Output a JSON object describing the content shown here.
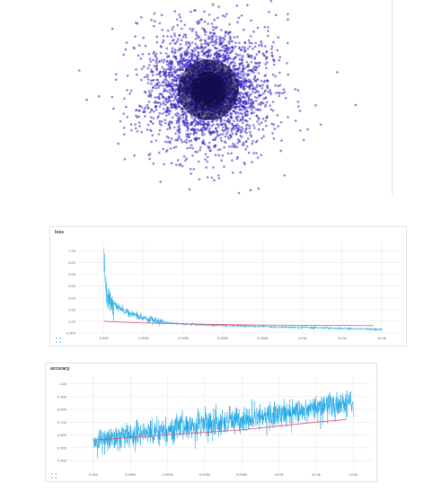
{
  "projector": {
    "dot_color": "#2b1fbf",
    "core_color": "#0b0733",
    "highlight_color": "#7fd06a"
  },
  "loss_panel": {
    "title": "loss",
    "expand_icon": "expand-icon"
  },
  "accuracy_panel": {
    "title": "accuracy",
    "expand_icon": "expand-icon"
  },
  "colors": {
    "raw_series": "#1da7e6",
    "smoothed_series": "#e0506b",
    "grid": "#e8e8e8",
    "tick_text": "#666666"
  },
  "chart_data": [
    {
      "type": "line",
      "title": "loss",
      "xlabel": "",
      "ylabel": "",
      "xlim": [
        -1300,
        15000
      ],
      "ylim": [
        0,
        7.8
      ],
      "x_ticks": [
        0,
        2000,
        4000,
        6000,
        8000,
        10000,
        12000,
        14000
      ],
      "x_tick_labels": [
        "0.000",
        "2.000k",
        "4.000k",
        "6.000k",
        "8.000k",
        "10.0k",
        "12.0k",
        "14.0k"
      ],
      "y_ticks": [
        0,
        1,
        2,
        3,
        4,
        5,
        6,
        7
      ],
      "y_tick_labels": [
        "0.000",
        "1.00",
        "2.00",
        "3.00",
        "4.00",
        "5.00",
        "6.00",
        "7.00"
      ],
      "grid": true,
      "series": [
        {
          "color": "#1da7e6",
          "x": [
            0,
            50,
            100,
            200,
            400,
            700,
            1000,
            1500,
            2000,
            2500,
            3000,
            3500,
            4000,
            5000,
            6000,
            7000,
            8000,
            9000,
            10000,
            11000,
            12000,
            13000,
            14000
          ],
          "values": [
            7.0,
            5.2,
            3.8,
            3.1,
            2.6,
            2.2,
            1.9,
            1.55,
            1.3,
            1.1,
            0.95,
            0.85,
            0.78,
            0.7,
            0.64,
            0.6,
            0.55,
            0.5,
            0.47,
            0.44,
            0.4,
            0.36,
            0.3
          ]
        },
        {
          "color": "#e0506b",
          "x": [
            0,
            1000,
            2000,
            4000,
            6000,
            8000,
            10000,
            12000,
            13600
          ],
          "values": [
            1.0,
            0.92,
            0.86,
            0.78,
            0.72,
            0.68,
            0.66,
            0.64,
            0.62
          ]
        }
      ]
    },
    {
      "type": "line",
      "title": "accuracy",
      "xlabel": "",
      "ylabel": "",
      "xlim": [
        -1300,
        15000
      ],
      "ylim": [
        0.33,
        1.06
      ],
      "x_ticks": [
        0,
        2000,
        4000,
        6000,
        8000,
        10000,
        12000,
        14000
      ],
      "x_tick_labels": [
        "0.000",
        "2.000k",
        "4.000k",
        "6.000k",
        "8.000k",
        "10.0k",
        "12.0k",
        "14.0k"
      ],
      "y_ticks": [
        0.4,
        0.5,
        0.6,
        0.7,
        0.8,
        0.9,
        1.0
      ],
      "y_tick_labels": [
        "0.400",
        "0.500",
        "0.600",
        "0.700",
        "0.800",
        "0.900",
        "1.00"
      ],
      "grid": true,
      "series": [
        {
          "color": "#1da7e6",
          "x": [
            0,
            1000,
            2000,
            3000,
            4000,
            5000,
            6000,
            7000,
            8000,
            9000,
            10000,
            11000,
            12000,
            13000,
            14000
          ],
          "values": [
            0.55,
            0.58,
            0.6,
            0.62,
            0.64,
            0.66,
            0.68,
            0.7,
            0.72,
            0.74,
            0.76,
            0.78,
            0.81,
            0.84,
            0.86
          ]
        },
        {
          "color": "#e0506b",
          "x": [
            0,
            2000,
            4000,
            6000,
            8000,
            10000,
            12000,
            13600
          ],
          "values": [
            0.56,
            0.58,
            0.6,
            0.62,
            0.64,
            0.67,
            0.7,
            0.72
          ]
        }
      ]
    }
  ]
}
